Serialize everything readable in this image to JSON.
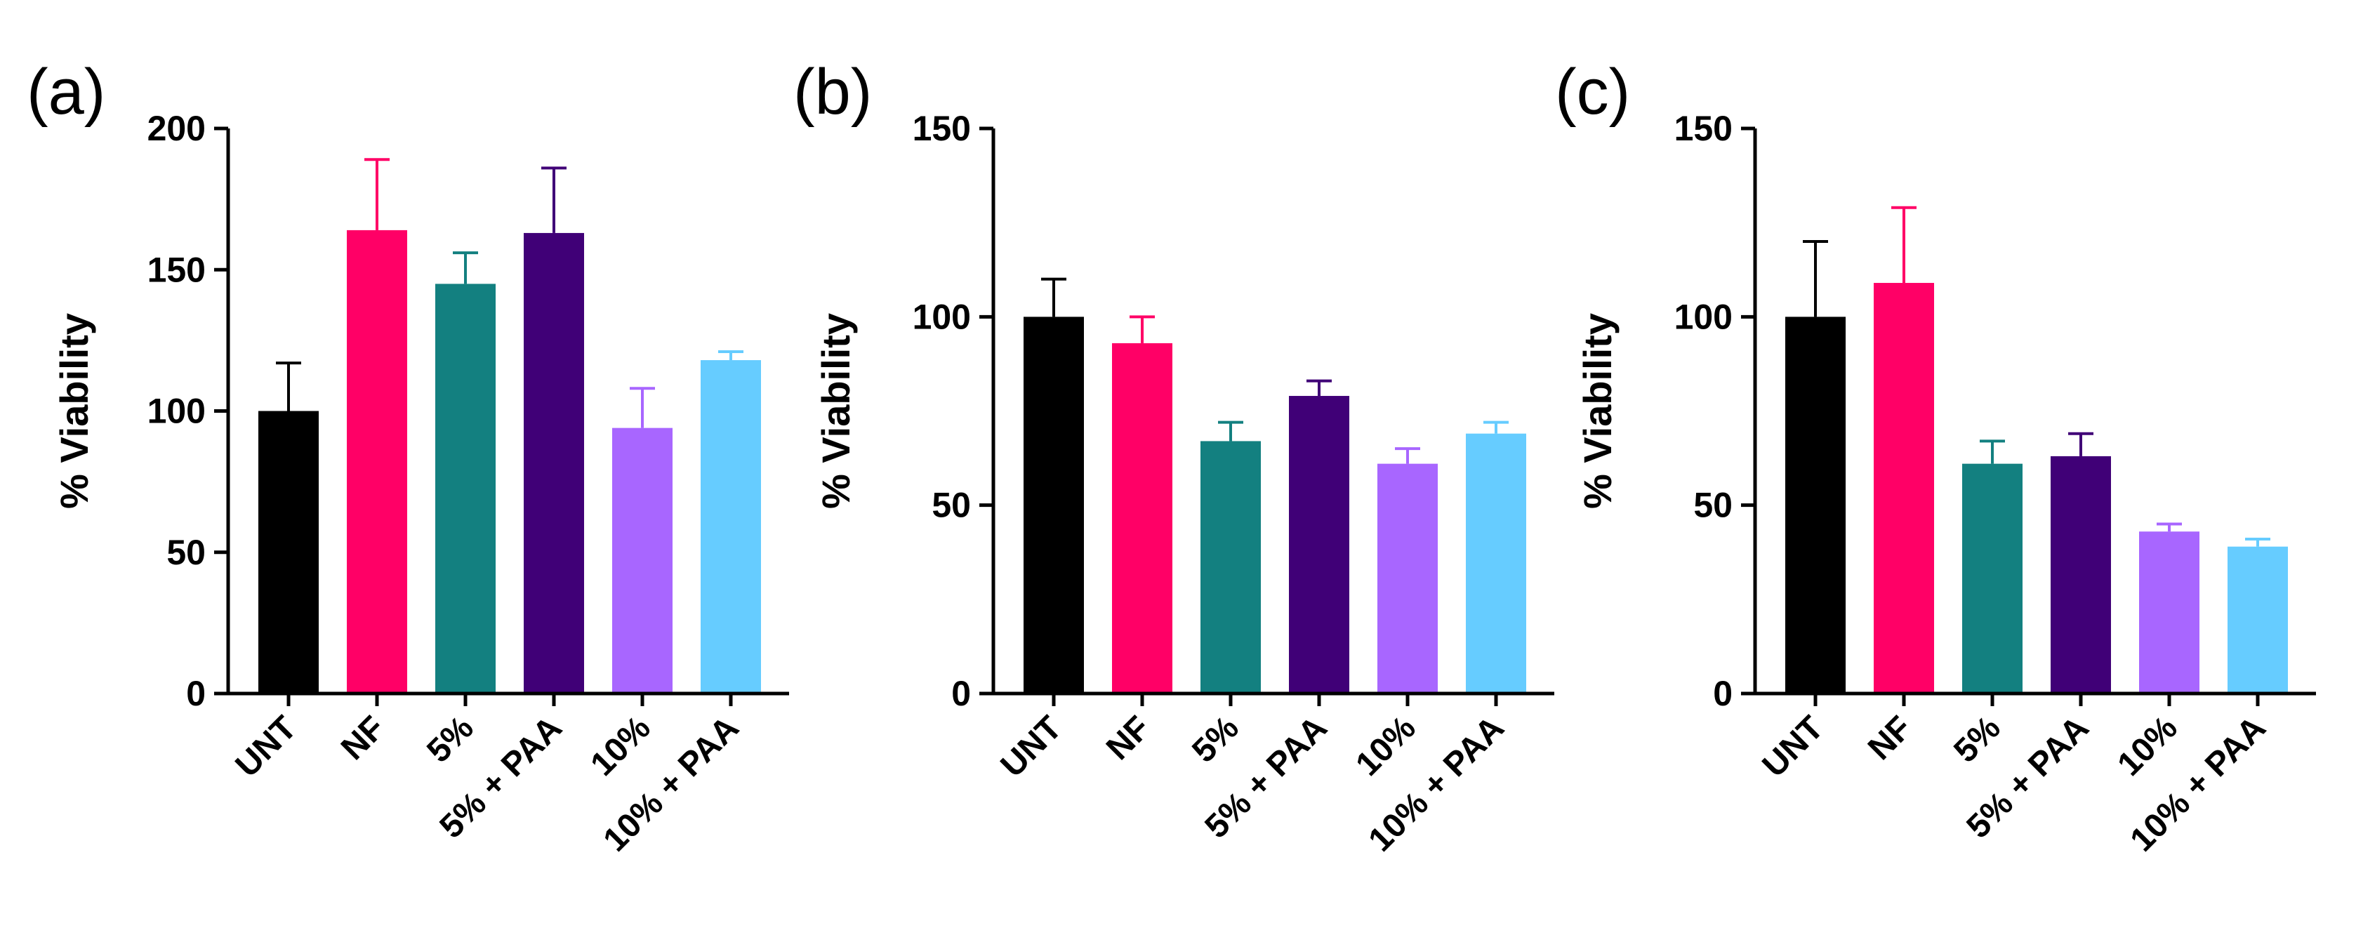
{
  "chart_data": [
    {
      "type": "bar",
      "panel_label": "(a)",
      "categories": [
        "UNT",
        "NF",
        "5%",
        "5% + PAA",
        "10%",
        "10% + PAA"
      ],
      "values": [
        100,
        164,
        145,
        163,
        94,
        118
      ],
      "errors": [
        17,
        25,
        11,
        23,
        14,
        3
      ],
      "colors": [
        "#000000",
        "#ff0066",
        "#138080",
        "#400077",
        "#a866ff",
        "#66ccff"
      ],
      "title": "",
      "xlabel": "",
      "ylabel": "% Viability",
      "ylim": [
        0,
        200
      ],
      "yticks": [
        0,
        50,
        100,
        150,
        200
      ],
      "grid": false
    },
    {
      "type": "bar",
      "panel_label": "(b)",
      "categories": [
        "UNT",
        "NF",
        "5%",
        "5% + PAA",
        "10%",
        "10% + PAA"
      ],
      "values": [
        100,
        93,
        67,
        79,
        61,
        69
      ],
      "errors": [
        10,
        7,
        5,
        4,
        4,
        3
      ],
      "colors": [
        "#000000",
        "#ff0066",
        "#138080",
        "#400077",
        "#a866ff",
        "#66ccff"
      ],
      "title": "",
      "xlabel": "",
      "ylabel": "% Viability",
      "ylim": [
        0,
        150
      ],
      "yticks": [
        0,
        50,
        100,
        150
      ],
      "grid": false
    },
    {
      "type": "bar",
      "panel_label": "(c)",
      "categories": [
        "UNT",
        "NF",
        "5%",
        "5% + PAA",
        "10%",
        "10% + PAA"
      ],
      "values": [
        100,
        109,
        61,
        63,
        43,
        39
      ],
      "errors": [
        20,
        20,
        6,
        6,
        2,
        2
      ],
      "colors": [
        "#000000",
        "#ff0066",
        "#138080",
        "#400077",
        "#a866ff",
        "#66ccff"
      ],
      "title": "",
      "xlabel": "",
      "ylabel": "% Viability",
      "ylim": [
        0,
        150
      ],
      "yticks": [
        0,
        50,
        100,
        150
      ],
      "grid": false
    }
  ]
}
